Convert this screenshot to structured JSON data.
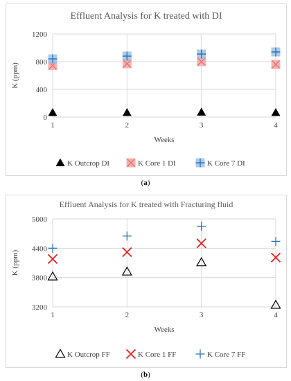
{
  "chart_data": [
    {
      "type": "scatter",
      "title": "Effluent Analysis for K treated with DI",
      "xlabel": "Weeks",
      "ylabel": "K (ppm)",
      "x": [
        1,
        2,
        3,
        4
      ],
      "xticks": [
        "1",
        "2",
        "3",
        "4"
      ],
      "ylim": [
        0,
        1200
      ],
      "yticks": [
        "0",
        "400",
        "800",
        "1200"
      ],
      "ytick_values": [
        0,
        400,
        800,
        1200
      ],
      "grid": "vertical and horizontal",
      "legend_position": "bottom",
      "series": [
        {
          "name": "K Outcrop DI",
          "marker": "filled-triangle",
          "color": "#000000",
          "values": [
            65,
            65,
            70,
            65
          ]
        },
        {
          "name": "K Core 1 DI",
          "marker": "filled-square-x",
          "color": "#f4a6a6",
          "values": [
            745,
            770,
            800,
            760
          ]
        },
        {
          "name": "K Core 7 DI",
          "marker": "filled-square-plus",
          "color": "#9dc3e6",
          "values": [
            840,
            880,
            910,
            940
          ]
        }
      ]
    },
    {
      "type": "scatter",
      "title": "Effluent Analysis for K treated with Fracturing fluid",
      "xlabel": "Weeks",
      "ylabel": "K (ppm)",
      "x": [
        1,
        2,
        3,
        4
      ],
      "xticks": [
        "1",
        "2",
        "3",
        "4"
      ],
      "ylim": [
        3200,
        5000
      ],
      "yticks": [
        "3200",
        "3800",
        "4400",
        "5000"
      ],
      "ytick_values": [
        3200,
        3800,
        4400,
        5000
      ],
      "grid": "vertical and horizontal",
      "legend_position": "bottom",
      "series": [
        {
          "name": "K Outcrop FF",
          "marker": "open-triangle",
          "color": "#000000",
          "values": [
            3820,
            3920,
            4110,
            3240
          ]
        },
        {
          "name": "K Core 1 FF",
          "marker": "x",
          "color": "#e02020",
          "values": [
            4180,
            4320,
            4500,
            4210
          ]
        },
        {
          "name": "K Core 7 FF",
          "marker": "plus",
          "color": "#2e75b6",
          "values": [
            4400,
            4650,
            4850,
            4540
          ]
        }
      ]
    }
  ],
  "labels": {
    "a": "a",
    "b": "b"
  }
}
